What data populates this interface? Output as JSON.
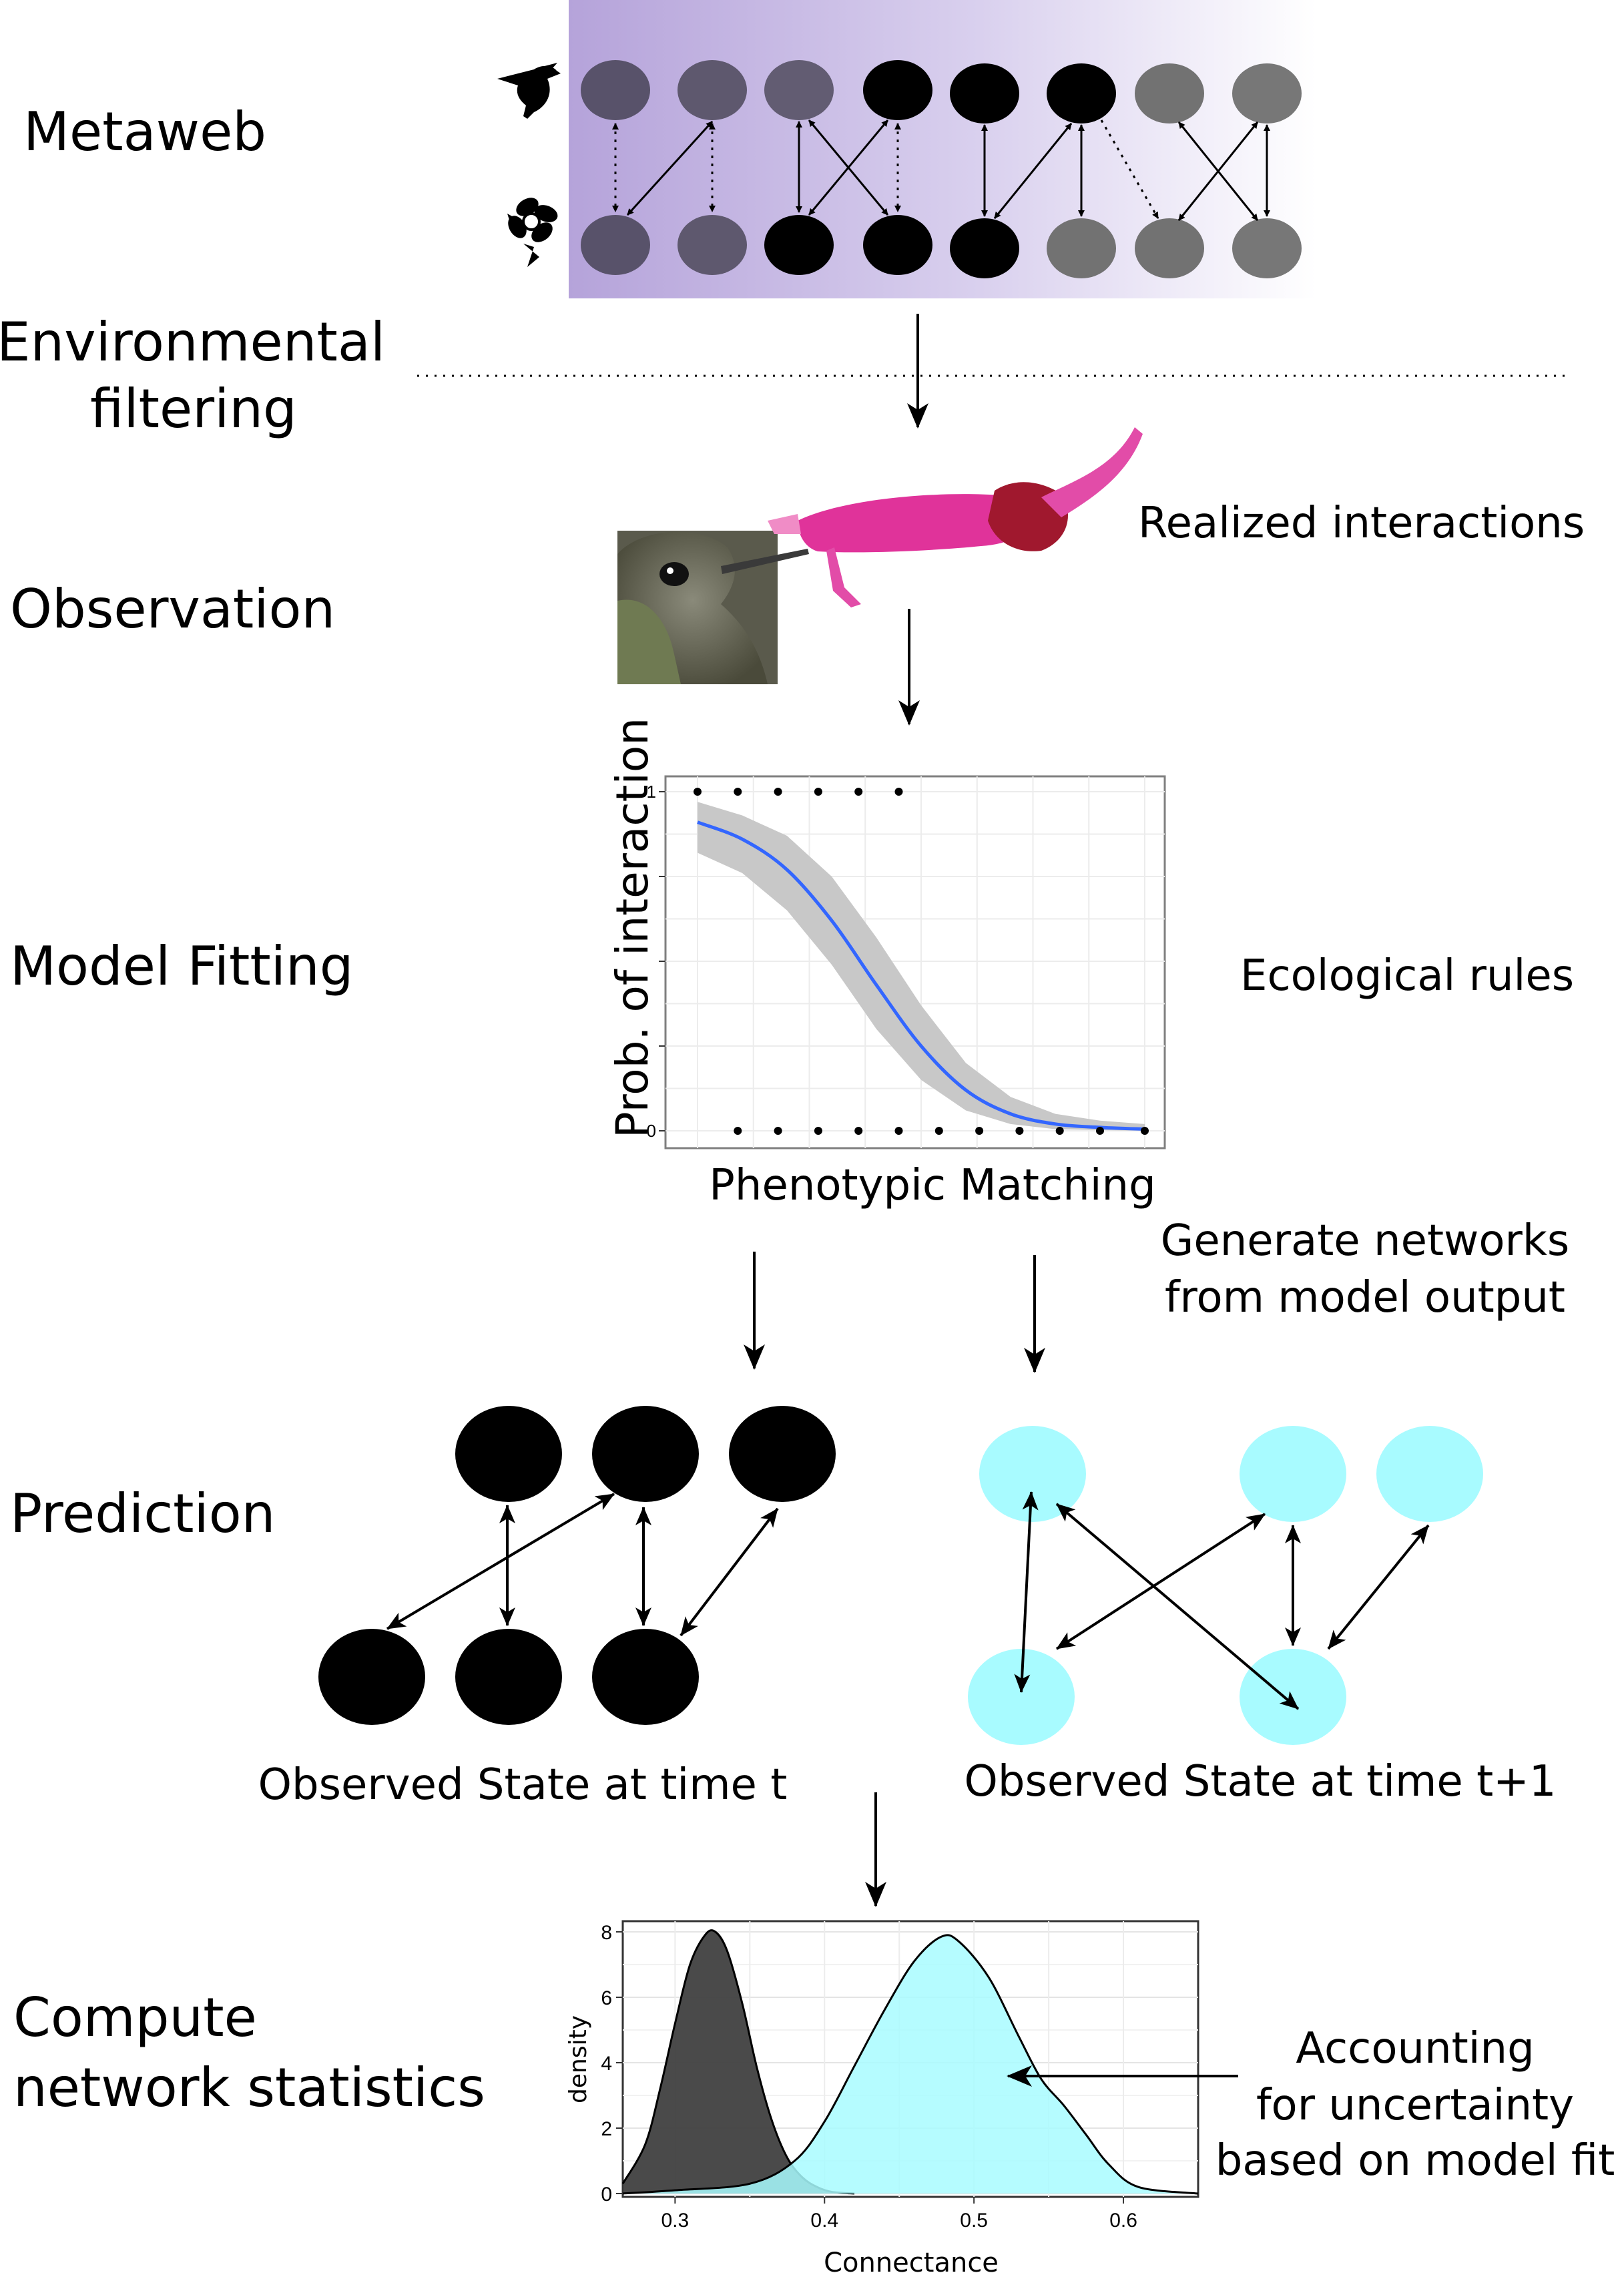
{
  "stages": {
    "metaweb": "Metaweb",
    "env_line1": "Environmental",
    "env_line2": "filtering",
    "observation": "Observation",
    "model_fitting": "Model Fitting",
    "prediction": "Prediction",
    "compute_line1": "Compute",
    "compute_line2": "network statistics"
  },
  "notes": {
    "realized": "Realized interactions",
    "ecological": "Ecological rules",
    "generate_line1": "Generate networks",
    "generate_line2": "from model output",
    "observed_t": "Observed State at time t",
    "observed_t1": "Observed State at time t+1",
    "accounting_line1": "Accounting",
    "accounting_line2": "for uncertainty",
    "accounting_line3": "based on model fit"
  },
  "colors": {
    "metaweb_band": "#b5a3da",
    "node_black": "#000000",
    "node_dark": "#58526a",
    "node_grey": "#707070",
    "node_cyan": "#a8fbff",
    "curve_blue": "#3366ff",
    "ribbon_grey": "#c8c8c8",
    "density_dark": "#404040",
    "density_cyan": "#a8fbff",
    "flower_pink": "#e0339a"
  },
  "icons": {
    "hummingbird": "hummingbird-silhouette-icon",
    "flower": "flower-silhouette-icon",
    "photo": "hummingbird-feeding-on-flower-photo"
  },
  "chart_data": [
    {
      "type": "line",
      "xlabel": "Phenotypic Matching",
      "ylabel": "Prob. of interaction",
      "y_ticks": [
        "0",
        "1"
      ],
      "ylim": [
        0,
        1
      ],
      "xlim": [
        0,
        1
      ],
      "grid": true,
      "fit_curve": {
        "x": [
          0.0,
          0.1,
          0.2,
          0.3,
          0.4,
          0.5,
          0.6,
          0.7,
          0.8,
          0.9,
          1.0
        ],
        "y": [
          0.91,
          0.86,
          0.77,
          0.62,
          0.43,
          0.25,
          0.12,
          0.05,
          0.02,
          0.01,
          0.005
        ],
        "lower": [
          0.82,
          0.76,
          0.65,
          0.49,
          0.3,
          0.15,
          0.06,
          0.02,
          0.005,
          0.002,
          0.0
        ],
        "upper": [
          0.97,
          0.93,
          0.87,
          0.75,
          0.57,
          0.37,
          0.2,
          0.1,
          0.05,
          0.03,
          0.02
        ]
      },
      "points_y1_x": [
        0.0,
        0.09,
        0.18,
        0.27,
        0.36,
        0.45
      ],
      "points_y0_x": [
        0.09,
        0.18,
        0.27,
        0.36,
        0.45,
        0.54,
        0.63,
        0.72,
        0.81,
        0.9,
        1.0
      ]
    },
    {
      "type": "area",
      "xlabel": "Connectance",
      "ylabel": "density",
      "x_ticks": [
        "0.3",
        "0.4",
        "0.5",
        "0.6"
      ],
      "y_ticks": [
        "0",
        "2",
        "4",
        "6",
        "8"
      ],
      "xlim": [
        0.265,
        0.65
      ],
      "ylim": [
        0,
        8.2
      ],
      "grid": true,
      "series": [
        {
          "x": [
            0.265,
            0.28,
            0.29,
            0.3,
            0.31,
            0.32,
            0.327,
            0.335,
            0.345,
            0.355,
            0.365,
            0.375,
            0.385,
            0.395,
            0.405,
            0.42
          ],
          "y": [
            0.3,
            1.5,
            3.2,
            5.2,
            7.0,
            7.9,
            8.0,
            7.4,
            5.8,
            3.8,
            2.2,
            1.1,
            0.5,
            0.2,
            0.05,
            0.0
          ],
          "color": "#404040"
        },
        {
          "x": [
            0.265,
            0.3,
            0.35,
            0.38,
            0.4,
            0.42,
            0.44,
            0.46,
            0.478,
            0.49,
            0.51,
            0.53,
            0.545,
            0.56,
            0.575,
            0.59,
            0.61,
            0.65
          ],
          "y": [
            0.0,
            0.1,
            0.3,
            1.0,
            2.2,
            3.9,
            5.6,
            7.1,
            7.85,
            7.7,
            6.6,
            4.8,
            3.5,
            2.7,
            1.8,
            0.9,
            0.2,
            0.0
          ],
          "color": "#a8fbff"
        }
      ]
    }
  ]
}
